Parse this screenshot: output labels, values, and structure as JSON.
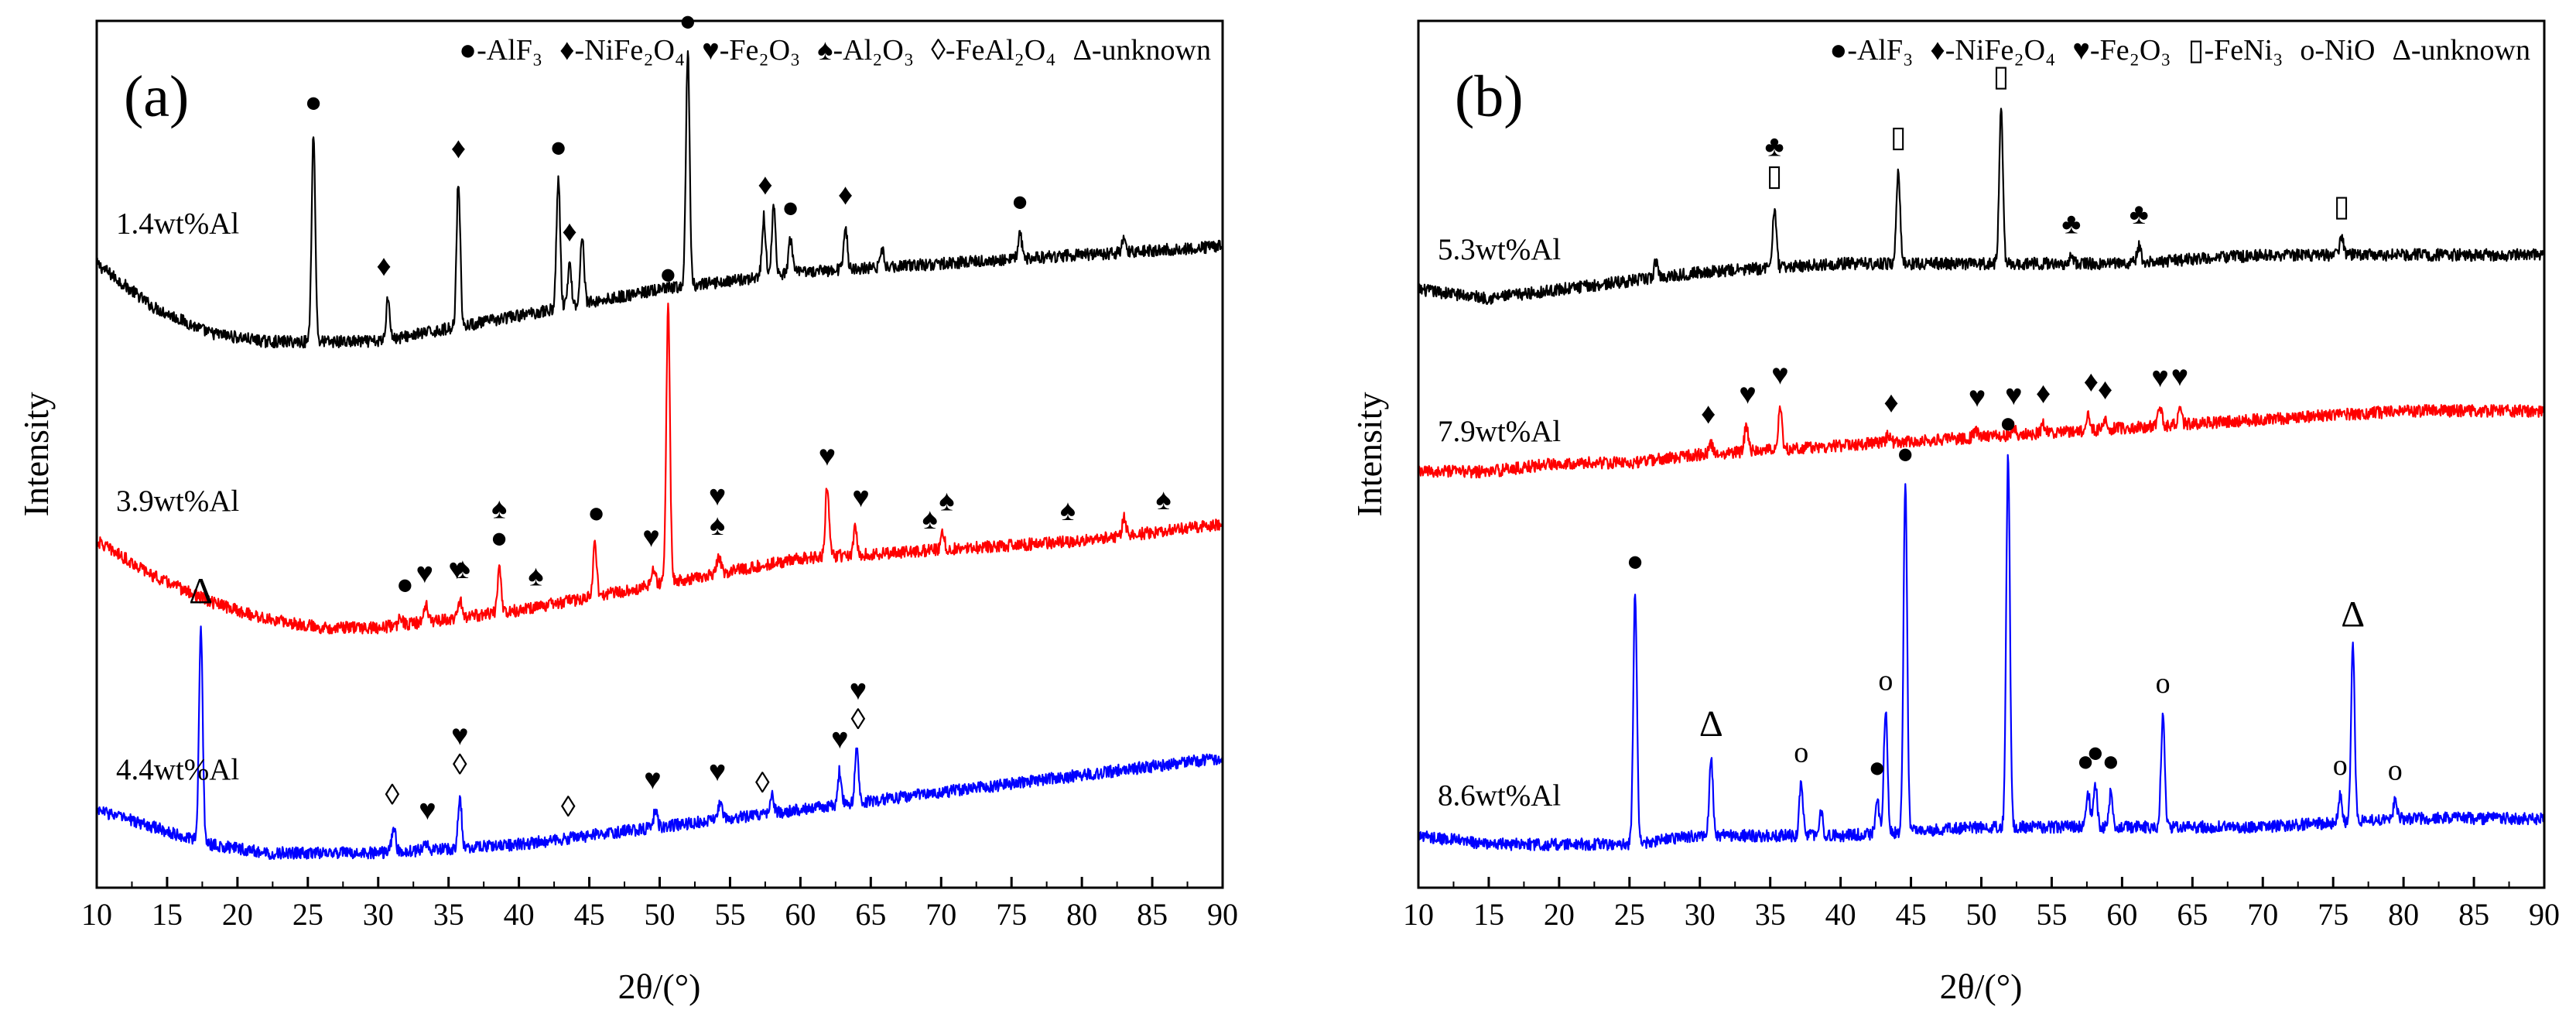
{
  "chart_data": [
    {
      "type": "line",
      "panel_label": "(a)",
      "xlabel": "2θ/(°)",
      "ylabel": "Intensity",
      "xlim": [
        10,
        90
      ],
      "xticks": [
        "10",
        "15",
        "20",
        "25",
        "30",
        "35",
        "40",
        "45",
        "50",
        "55",
        "60",
        "65",
        "70",
        "75",
        "80",
        "85",
        "90"
      ],
      "legend": {
        "position": "top-right",
        "entries": [
          {
            "symbol": "●",
            "text": "-AlF₃"
          },
          {
            "symbol": "♦",
            "text": "-NiFe₂O₄"
          },
          {
            "symbol": "♥",
            "text": "-Fe₂O₃"
          },
          {
            "symbol": "♠",
            "text": "-Al₂O₃"
          },
          {
            "symbol": "◊",
            "text": "-FeAl₂O₄"
          },
          {
            "symbol": "Δ",
            "text": "-unknown"
          }
        ]
      },
      "series": [
        {
          "name": "1.4wt%Al",
          "color": "#000000",
          "offset": 0.72,
          "baseline": [
            [
              10,
              0.72
            ],
            [
              14,
              0.67
            ],
            [
              18,
              0.64
            ],
            [
              22,
              0.63
            ],
            [
              30,
              0.63
            ],
            [
              40,
              0.66
            ],
            [
              50,
              0.69
            ],
            [
              60,
              0.71
            ],
            [
              70,
              0.72
            ],
            [
              80,
              0.73
            ],
            [
              90,
              0.74
            ]
          ],
          "peaks": [
            [
              25.4,
              0.24
            ],
            [
              30.7,
              0.05
            ],
            [
              35.7,
              0.17
            ],
            [
              42.8,
              0.15
            ],
            [
              43.6,
              0.05
            ],
            [
              44.5,
              0.08
            ],
            [
              52.0,
              0.27
            ],
            [
              57.4,
              0.07
            ],
            [
              58.1,
              0.08
            ],
            [
              59.3,
              0.04
            ],
            [
              63.2,
              0.05
            ],
            [
              65.8,
              0.02
            ],
            [
              75.6,
              0.03
            ],
            [
              83.0,
              0.02
            ]
          ],
          "annotations": [
            [
              25.4,
              "●"
            ],
            [
              30.4,
              "♦"
            ],
            [
              35.7,
              "♦"
            ],
            [
              42.8,
              "●"
            ],
            [
              43.6,
              "♦"
            ],
            [
              52.0,
              "●"
            ],
            [
              57.5,
              "♦"
            ],
            [
              59.3,
              "●"
            ],
            [
              63.2,
              "♦"
            ],
            [
              75.6,
              "●"
            ]
          ]
        },
        {
          "name": "3.9wt%Al",
          "color": "#ff0000",
          "offset": 0.35,
          "baseline": [
            [
              10,
              0.4
            ],
            [
              14,
              0.36
            ],
            [
              18,
              0.33
            ],
            [
              22,
              0.31
            ],
            [
              26,
              0.3
            ],
            [
              30,
              0.3
            ],
            [
              40,
              0.32
            ],
            [
              50,
              0.35
            ],
            [
              60,
              0.38
            ],
            [
              70,
              0.39
            ],
            [
              80,
              0.4
            ],
            [
              90,
              0.42
            ]
          ],
          "peaks": [
            [
              31.6,
              0.01
            ],
            [
              33.4,
              0.02
            ],
            [
              35.8,
              0.02
            ],
            [
              38.6,
              0.05
            ],
            [
              45.4,
              0.06
            ],
            [
              49.6,
              0.02
            ],
            [
              50.6,
              0.32
            ],
            [
              54.2,
              0.02
            ],
            [
              61.9,
              0.08
            ],
            [
              63.9,
              0.03
            ],
            [
              70.1,
              0.02
            ],
            [
              83.0,
              0.02
            ]
          ],
          "annotations": [
            [
              31.9,
              "●"
            ],
            [
              33.3,
              "♥"
            ],
            [
              35.6,
              "♥"
            ],
            [
              36.0,
              "♠"
            ],
            [
              38.6,
              "●"
            ],
            [
              38.6,
              "♠"
            ],
            [
              41.2,
              "♠"
            ],
            [
              45.5,
              "●"
            ],
            [
              49.4,
              "♥"
            ],
            [
              50.6,
              "●"
            ],
            [
              54.1,
              "♠"
            ],
            [
              54.1,
              "♥"
            ],
            [
              61.9,
              "♥"
            ],
            [
              64.3,
              "♥"
            ],
            [
              69.2,
              "♠"
            ],
            [
              70.4,
              "♠"
            ],
            [
              79.0,
              "♠"
            ],
            [
              85.8,
              "♠"
            ]
          ]
        },
        {
          "name": "4.4wt%Al",
          "color": "#0000ff",
          "offset": 0.06,
          "baseline": [
            [
              10,
              0.09
            ],
            [
              14,
              0.07
            ],
            [
              18,
              0.05
            ],
            [
              22,
              0.04
            ],
            [
              30,
              0.04
            ],
            [
              40,
              0.05
            ],
            [
              50,
              0.07
            ],
            [
              60,
              0.09
            ],
            [
              70,
              0.11
            ],
            [
              80,
              0.13
            ],
            [
              90,
              0.15
            ]
          ],
          "peaks": [
            [
              17.4,
              0.25
            ],
            [
              31.1,
              0.03
            ],
            [
              33.4,
              0.01
            ],
            [
              35.8,
              0.06
            ],
            [
              49.7,
              0.02
            ],
            [
              54.3,
              0.02
            ],
            [
              58.0,
              0.02
            ],
            [
              62.8,
              0.04
            ],
            [
              64.0,
              0.06
            ]
          ],
          "annotations": [
            [
              17.4,
              "Δ"
            ],
            [
              31.0,
              "◊"
            ],
            [
              33.5,
              "♥"
            ],
            [
              35.8,
              "◊"
            ],
            [
              35.8,
              "♥"
            ],
            [
              43.5,
              "◊"
            ],
            [
              49.5,
              "♥"
            ],
            [
              54.1,
              "♥"
            ],
            [
              57.3,
              "◊"
            ],
            [
              62.8,
              "♥"
            ],
            [
              64.1,
              "◊"
            ],
            [
              64.1,
              "♥"
            ]
          ]
        }
      ]
    },
    {
      "type": "line",
      "panel_label": "(b)",
      "xlabel": "2θ/(°)",
      "ylabel": "Intensity",
      "xlim": [
        10,
        90
      ],
      "xticks": [
        "10",
        "15",
        "20",
        "25",
        "30",
        "35",
        "40",
        "45",
        "50",
        "55",
        "60",
        "65",
        "70",
        "75",
        "80",
        "85",
        "90"
      ],
      "legend": {
        "position": "top-right",
        "entries": [
          {
            "symbol": "●",
            "text": "-AlF₃"
          },
          {
            "symbol": "♦",
            "text": "-NiFe₂O₄"
          },
          {
            "symbol": "♥",
            "text": "-Fe₂O₃"
          },
          {
            "symbol": "▯",
            "text": "-FeNi₃"
          },
          {
            "symbol": "o",
            "text": "-NiO"
          },
          {
            "symbol": "Δ",
            "text": "-unknown"
          }
        ]
      },
      "series": [
        {
          "name": "5.3wt%Al",
          "color": "#000000",
          "offset": 0.72,
          "baseline": [
            [
              10,
              0.69
            ],
            [
              15,
              0.68
            ],
            [
              20,
              0.69
            ],
            [
              25,
              0.7
            ],
            [
              30,
              0.71
            ],
            [
              40,
              0.72
            ],
            [
              50,
              0.72
            ],
            [
              60,
              0.72
            ],
            [
              70,
              0.73
            ],
            [
              80,
              0.73
            ],
            [
              90,
              0.73
            ]
          ],
          "peaks": [
            [
              26.9,
              0.02
            ],
            [
              35.3,
              0.07
            ],
            [
              44.1,
              0.11
            ],
            [
              51.4,
              0.18
            ],
            [
              56.4,
              0.01
            ],
            [
              61.2,
              0.02
            ],
            [
              75.6,
              0.02
            ]
          ],
          "annotations": [
            [
              35.3,
              "▯"
            ],
            [
              35.3,
              "♣"
            ],
            [
              44.1,
              "▯"
            ],
            [
              51.4,
              "▯"
            ],
            [
              56.4,
              "♣"
            ],
            [
              61.2,
              "♣"
            ],
            [
              75.6,
              "▯"
            ]
          ]
        },
        {
          "name": "7.9wt%Al",
          "color": "#ff0000",
          "offset": 0.48,
          "baseline": [
            [
              10,
              0.48
            ],
            [
              15,
              0.48
            ],
            [
              20,
              0.49
            ],
            [
              25,
              0.49
            ],
            [
              30,
              0.5
            ],
            [
              40,
              0.51
            ],
            [
              50,
              0.52
            ],
            [
              60,
              0.53
            ],
            [
              70,
              0.54
            ],
            [
              80,
              0.55
            ],
            [
              90,
              0.55
            ]
          ],
          "peaks": [
            [
              30.8,
              0.01
            ],
            [
              33.3,
              0.03
            ],
            [
              35.7,
              0.05
            ],
            [
              43.4,
              0.01
            ],
            [
              49.6,
              0.01
            ],
            [
              52.3,
              0.01
            ],
            [
              54.4,
              0.01
            ],
            [
              57.6,
              0.02
            ],
            [
              58.8,
              0.01
            ],
            [
              62.7,
              0.02
            ],
            [
              64.1,
              0.02
            ]
          ],
          "annotations": [
            [
              30.6,
              "♦"
            ],
            [
              33.4,
              "♥"
            ],
            [
              35.7,
              "♥"
            ],
            [
              43.6,
              "♦"
            ],
            [
              49.7,
              "♥"
            ],
            [
              52.3,
              "♥"
            ],
            [
              54.4,
              "♦"
            ],
            [
              57.8,
              "♦"
            ],
            [
              58.8,
              "♦"
            ],
            [
              62.7,
              "♥"
            ],
            [
              64.1,
              "♥"
            ]
          ]
        },
        {
          "name": "8.6wt%Al",
          "color": "#0000ff",
          "offset": 0.05,
          "baseline": [
            [
              10,
              0.06
            ],
            [
              15,
              0.05
            ],
            [
              20,
              0.05
            ],
            [
              25,
              0.05
            ],
            [
              30,
              0.06
            ],
            [
              40,
              0.06
            ],
            [
              50,
              0.07
            ],
            [
              60,
              0.07
            ],
            [
              70,
              0.07
            ],
            [
              80,
              0.08
            ],
            [
              90,
              0.08
            ]
          ],
          "peaks": [
            [
              25.4,
              0.29
            ],
            [
              30.8,
              0.09
            ],
            [
              37.2,
              0.06
            ],
            [
              38.6,
              0.03
            ],
            [
              42.6,
              0.04
            ],
            [
              43.2,
              0.14
            ],
            [
              44.6,
              0.4
            ],
            [
              51.9,
              0.43
            ],
            [
              57.6,
              0.04
            ],
            [
              58.1,
              0.05
            ],
            [
              59.2,
              0.04
            ],
            [
              62.9,
              0.13
            ],
            [
              75.5,
              0.03
            ],
            [
              76.4,
              0.2
            ],
            [
              79.4,
              0.02
            ]
          ],
          "annotations": [
            [
              25.4,
              "●"
            ],
            [
              30.8,
              "Δ"
            ],
            [
              37.2,
              "o"
            ],
            [
              42.6,
              "●"
            ],
            [
              43.2,
              "o"
            ],
            [
              44.6,
              "●"
            ],
            [
              51.9,
              "●"
            ],
            [
              57.4,
              "●"
            ],
            [
              58.1,
              "●"
            ],
            [
              59.2,
              "●"
            ],
            [
              62.9,
              "o"
            ],
            [
              75.5,
              "o"
            ],
            [
              76.4,
              "Δ"
            ],
            [
              79.4,
              "o"
            ]
          ]
        }
      ]
    }
  ]
}
